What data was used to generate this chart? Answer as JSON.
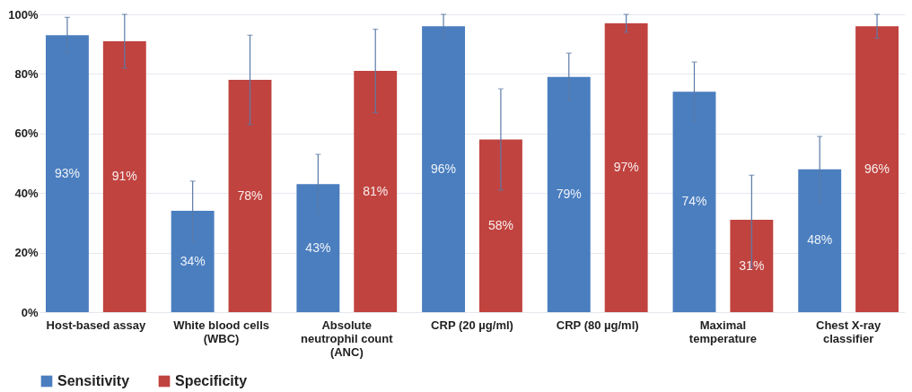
{
  "chart_data": {
    "type": "bar",
    "categories": [
      "Host-based assay",
      "White blood cells\n(WBC)",
      "Absolute\nneutrophil count\n(ANC)",
      "CRP (20 µg/ml)",
      "CRP (80 µg/ml)",
      "Maximal\ntemperature",
      "Chest X-ray\nclassifier"
    ],
    "series": [
      {
        "name": "Sensitivity",
        "color": "#4a7ebf",
        "values": [
          93,
          34,
          43,
          96,
          79,
          74,
          48
        ],
        "value_labels": [
          "93%",
          "34%",
          "43%",
          "96%",
          "79%",
          "74%",
          "48%"
        ],
        "errors": [
          [
            87,
            99
          ],
          [
            24,
            44
          ],
          [
            33,
            53
          ],
          [
            92,
            100
          ],
          [
            71,
            87
          ],
          [
            64,
            84
          ],
          [
            37,
            59
          ]
        ]
      },
      {
        "name": "Specificity",
        "color": "#c0433f",
        "values": [
          91,
          78,
          81,
          58,
          97,
          31,
          96
        ],
        "value_labels": [
          "91%",
          "78%",
          "81%",
          "58%",
          "97%",
          "31%",
          "96%"
        ],
        "errors": [
          [
            82,
            100
          ],
          [
            63,
            93
          ],
          [
            67,
            95
          ],
          [
            41,
            75
          ],
          [
            94,
            100
          ],
          [
            15,
            46
          ],
          [
            92,
            100
          ]
        ]
      }
    ],
    "ylim": [
      0,
      100
    ],
    "yticks": [
      {
        "value": 0,
        "label": "0%"
      },
      {
        "value": 20,
        "label": "20%"
      },
      {
        "value": 40,
        "label": "40%"
      },
      {
        "value": 60,
        "label": "60%"
      },
      {
        "value": 80,
        "label": "80%"
      },
      {
        "value": 100,
        "label": "100%"
      }
    ],
    "grid": "y",
    "legend": "bottom"
  }
}
